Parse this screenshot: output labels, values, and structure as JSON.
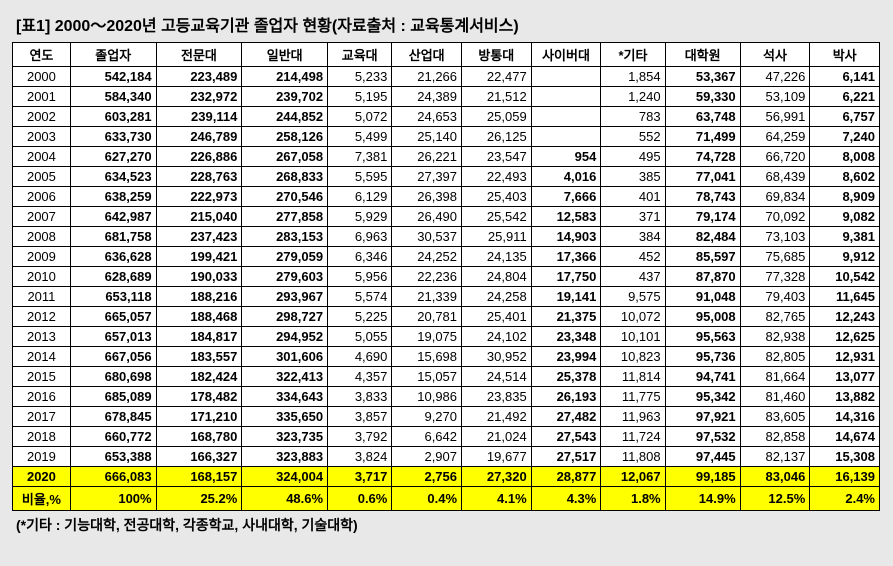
{
  "title": "[표1] 2000～2020년 고등교육기관 졸업자 현황(자료출처 : 교육통계서비스)",
  "footnote": "(*기타 : 기능대학, 전공대학, 각종학교, 사내대학, 기술대학)",
  "headers": [
    "연도",
    "졸업자",
    "전문대",
    "일반대",
    "교육대",
    "산업대",
    "방통대",
    "사이버대",
    "*기타",
    "대학원",
    "석사",
    "박사"
  ],
  "bold_cols": [
    1,
    2,
    3,
    7,
    9,
    11
  ],
  "rows": [
    {
      "year": "2000",
      "c": [
        "542,184",
        "223,489",
        "214,498",
        "5,233",
        "21,266",
        "22,477",
        "",
        "1,854",
        "53,367",
        "47,226",
        "6,141"
      ]
    },
    {
      "year": "2001",
      "c": [
        "584,340",
        "232,972",
        "239,702",
        "5,195",
        "24,389",
        "21,512",
        "",
        "1,240",
        "59,330",
        "53,109",
        "6,221"
      ]
    },
    {
      "year": "2002",
      "c": [
        "603,281",
        "239,114",
        "244,852",
        "5,072",
        "24,653",
        "25,059",
        "",
        "783",
        "63,748",
        "56,991",
        "6,757"
      ]
    },
    {
      "year": "2003",
      "c": [
        "633,730",
        "246,789",
        "258,126",
        "5,499",
        "25,140",
        "26,125",
        "",
        "552",
        "71,499",
        "64,259",
        "7,240"
      ]
    },
    {
      "year": "2004",
      "c": [
        "627,270",
        "226,886",
        "267,058",
        "7,381",
        "26,221",
        "23,547",
        "954",
        "495",
        "74,728",
        "66,720",
        "8,008"
      ]
    },
    {
      "year": "2005",
      "c": [
        "634,523",
        "228,763",
        "268,833",
        "5,595",
        "27,397",
        "22,493",
        "4,016",
        "385",
        "77,041",
        "68,439",
        "8,602"
      ]
    },
    {
      "year": "2006",
      "c": [
        "638,259",
        "222,973",
        "270,546",
        "6,129",
        "26,398",
        "25,403",
        "7,666",
        "401",
        "78,743",
        "69,834",
        "8,909"
      ]
    },
    {
      "year": "2007",
      "c": [
        "642,987",
        "215,040",
        "277,858",
        "5,929",
        "26,490",
        "25,542",
        "12,583",
        "371",
        "79,174",
        "70,092",
        "9,082"
      ]
    },
    {
      "year": "2008",
      "c": [
        "681,758",
        "237,423",
        "283,153",
        "6,963",
        "30,537",
        "25,911",
        "14,903",
        "384",
        "82,484",
        "73,103",
        "9,381"
      ]
    },
    {
      "year": "2009",
      "c": [
        "636,628",
        "199,421",
        "279,059",
        "6,346",
        "24,252",
        "24,135",
        "17,366",
        "452",
        "85,597",
        "75,685",
        "9,912"
      ]
    },
    {
      "year": "2010",
      "c": [
        "628,689",
        "190,033",
        "279,603",
        "5,956",
        "22,236",
        "24,804",
        "17,750",
        "437",
        "87,870",
        "77,328",
        "10,542"
      ]
    },
    {
      "year": "2011",
      "c": [
        "653,118",
        "188,216",
        "293,967",
        "5,574",
        "21,339",
        "24,258",
        "19,141",
        "9,575",
        "91,048",
        "79,403",
        "11,645"
      ]
    },
    {
      "year": "2012",
      "c": [
        "665,057",
        "188,468",
        "298,727",
        "5,225",
        "20,781",
        "25,401",
        "21,375",
        "10,072",
        "95,008",
        "82,765",
        "12,243"
      ]
    },
    {
      "year": "2013",
      "c": [
        "657,013",
        "184,817",
        "294,952",
        "5,055",
        "19,075",
        "24,102",
        "23,348",
        "10,101",
        "95,563",
        "82,938",
        "12,625"
      ]
    },
    {
      "year": "2014",
      "c": [
        "667,056",
        "183,557",
        "301,606",
        "4,690",
        "15,698",
        "30,952",
        "23,994",
        "10,823",
        "95,736",
        "82,805",
        "12,931"
      ]
    },
    {
      "year": "2015",
      "c": [
        "680,698",
        "182,424",
        "322,413",
        "4,357",
        "15,057",
        "24,514",
        "25,378",
        "11,814",
        "94,741",
        "81,664",
        "13,077"
      ]
    },
    {
      "year": "2016",
      "c": [
        "685,089",
        "178,482",
        "334,643",
        "3,833",
        "10,986",
        "23,835",
        "26,193",
        "11,775",
        "95,342",
        "81,460",
        "13,882"
      ]
    },
    {
      "year": "2017",
      "c": [
        "678,845",
        "171,210",
        "335,650",
        "3,857",
        "9,270",
        "21,492",
        "27,482",
        "11,963",
        "97,921",
        "83,605",
        "14,316"
      ]
    },
    {
      "year": "2018",
      "c": [
        "660,772",
        "168,780",
        "323,735",
        "3,792",
        "6,642",
        "21,024",
        "27,543",
        "11,724",
        "97,532",
        "82,858",
        "14,674"
      ]
    },
    {
      "year": "2019",
      "c": [
        "653,388",
        "166,327",
        "323,883",
        "3,824",
        "2,907",
        "19,677",
        "27,517",
        "11,808",
        "97,445",
        "82,137",
        "15,308"
      ]
    }
  ],
  "highlight_rows": [
    {
      "year": "2020",
      "c": [
        "666,083",
        "168,157",
        "324,004",
        "3,717",
        "2,756",
        "27,320",
        "28,877",
        "12,067",
        "99,185",
        "83,046",
        "16,139"
      ]
    },
    {
      "year": "비율,%",
      "c": [
        "100%",
        "25.2%",
        "48.6%",
        "0.6%",
        "0.4%",
        "4.1%",
        "4.3%",
        "1.8%",
        "14.9%",
        "12.5%",
        "2.4%"
      ]
    }
  ]
}
